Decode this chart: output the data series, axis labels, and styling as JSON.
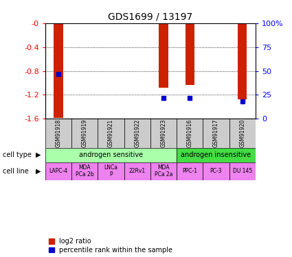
{
  "title": "GDS1699 / 13197",
  "samples": [
    "GSM91918",
    "GSM91919",
    "GSM91921",
    "GSM91922",
    "GSM91923",
    "GSM91916",
    "GSM91917",
    "GSM91920"
  ],
  "log2_ratio": [
    -1.58,
    0,
    0,
    0,
    -1.08,
    -1.03,
    0,
    -1.28
  ],
  "percentile_pct": [
    47,
    0,
    0,
    0,
    22,
    22,
    0,
    18
  ],
  "ylim_left": [
    -1.6,
    0
  ],
  "yticks_left": [
    0,
    -0.4,
    -0.8,
    -1.2,
    -1.6
  ],
  "ytick_labels_left": [
    "-0",
    "-0.4",
    "-0.8",
    "-1.2",
    "-1.6"
  ],
  "ytick_labels_right": [
    "0",
    "25",
    "50",
    "75",
    "100%"
  ],
  "cell_types": [
    {
      "label": "androgen sensitive",
      "start": 0,
      "end": 5,
      "color": "#aaffaa"
    },
    {
      "label": "androgen insensitive",
      "start": 5,
      "end": 8,
      "color": "#44dd44"
    }
  ],
  "cell_lines": [
    {
      "label": "LAPC-4",
      "start": 0,
      "end": 1
    },
    {
      "label": "MDA\nPCa 2b",
      "start": 1,
      "end": 2
    },
    {
      "label": "LNCa\nP",
      "start": 2,
      "end": 3
    },
    {
      "label": "22Rv1",
      "start": 3,
      "end": 4
    },
    {
      "label": "MDA\nPCa 2a",
      "start": 4,
      "end": 5
    },
    {
      "label": "PPC-1",
      "start": 5,
      "end": 6
    },
    {
      "label": "PC-3",
      "start": 6,
      "end": 7
    },
    {
      "label": "DU 145",
      "start": 7,
      "end": 8
    }
  ],
  "cell_line_color": "#ee82ee",
  "bar_color": "#cc2200",
  "percentile_color": "#0000cc",
  "bar_width": 0.35,
  "sample_row_color": "#cccccc",
  "legend_red": "log2 ratio",
  "legend_blue": "percentile rank within the sample"
}
